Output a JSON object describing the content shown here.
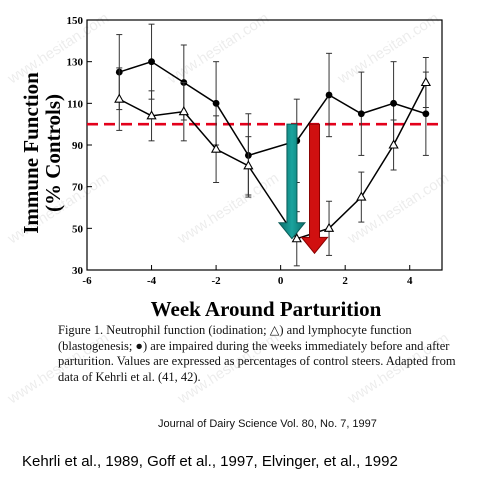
{
  "chart_data": {
    "type": "line",
    "xlabel": "Week Around Parturition",
    "ylabel_line1": "Immune Function",
    "ylabel_line2": "(% Controls)",
    "xlim": [
      -6,
      5
    ],
    "ylim": [
      30,
      150
    ],
    "xticks": [
      -6,
      -4,
      -2,
      0,
      2,
      4
    ],
    "yticks": [
      30,
      50,
      70,
      90,
      110,
      130,
      150
    ],
    "reference_line": {
      "y": 100,
      "color": "#e3001b",
      "style": "dashed"
    },
    "series": [
      {
        "marker": "filled-circle",
        "x": [
          -5,
          -4,
          -3,
          -2,
          -1,
          0.5,
          1.5,
          2.5,
          3.5,
          4.5
        ],
        "y": [
          125,
          130,
          120,
          110,
          85,
          92,
          114,
          105,
          110,
          105
        ],
        "err": [
          18,
          18,
          18,
          20,
          20,
          20,
          20,
          20,
          20,
          20
        ]
      },
      {
        "marker": "open-triangle",
        "x": [
          -5,
          -4,
          -3,
          -2,
          -1,
          0.5,
          1.5,
          2.5,
          3.5,
          4.5
        ],
        "y": [
          112,
          104,
          106,
          88,
          80,
          45,
          50,
          65,
          90,
          120
        ],
        "err": [
          15,
          12,
          14,
          16,
          14,
          13,
          13,
          12,
          12,
          12
        ]
      }
    ],
    "arrows": [
      {
        "x": 0.35,
        "from": 100,
        "to": 45,
        "color": "#0f8f8a"
      },
      {
        "x": 1.05,
        "from": 100,
        "to": 38,
        "color": "#d01010"
      }
    ]
  },
  "caption": "Figure 1. Neutrophil function (iodination; △) and lymphocyte function (blastogenesis; ●) are impaired during the weeks immediately before and after parturition. Values are expressed as percentages of control steers. Adapted from data of Kehrli et al. (41, 42).",
  "journal": "Journal of Dairy Science Vol. 80, No. 7, 1997",
  "references": "Kehrli et al., 1989, Goff et al., 1997, Elvinger, et al., 1992",
  "watermark": "www.hesitan.com"
}
